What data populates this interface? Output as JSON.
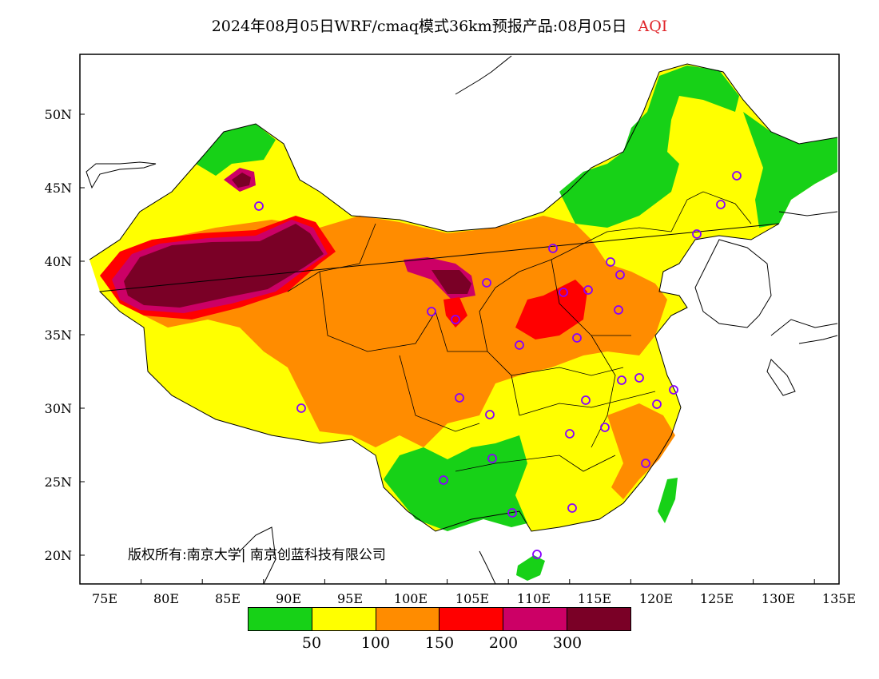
{
  "header": {
    "title": "2024年08月05日WRF/cmaq模式36km预报产品:08月05日",
    "product": "AQI"
  },
  "axes": {
    "y_labels": [
      "50N",
      "45N",
      "40N",
      "35N",
      "30N",
      "25N",
      "20N"
    ],
    "x_labels": [
      "75E",
      "80E",
      "85E",
      "90E",
      "95E",
      "100E",
      "105E",
      "110E",
      "115E",
      "120E",
      "125E",
      "130E",
      "135E"
    ]
  },
  "copyright": "版权所有:南京大学| 南京创蓝科技有限公司",
  "legend": {
    "colors": [
      "#17d117",
      "#ffff00",
      "#ff8c00",
      "#ff0000",
      "#cc0066",
      "#7a0026"
    ],
    "labels": [
      "50",
      "100",
      "150",
      "200",
      "300"
    ]
  },
  "colors": {
    "ocean": "#ffffff",
    "station_marker": "#8800ff"
  }
}
